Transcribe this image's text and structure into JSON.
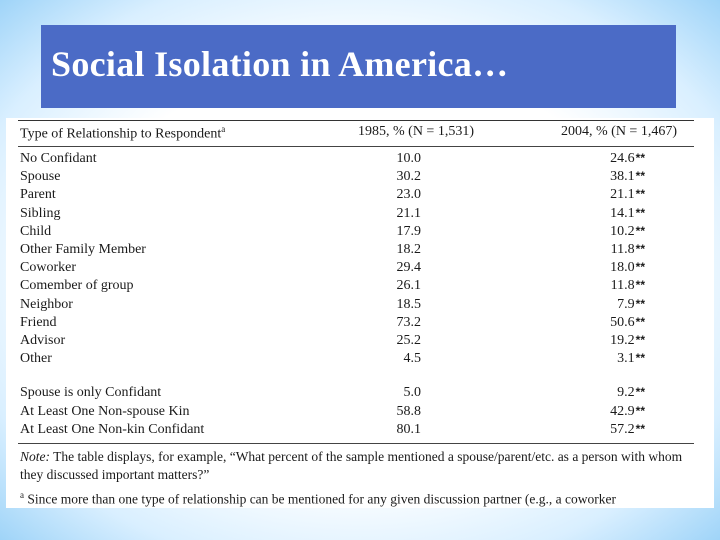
{
  "slide": {
    "title": "Social Isolation in America…"
  },
  "table": {
    "headers": {
      "type": "Type of Relationship to Respondent",
      "type_sup": "a",
      "col1985": "1985, % (N = 1,531)",
      "col2004": "2004, % (N = 1,467)"
    },
    "significance_marker": "**",
    "rows": [
      {
        "label": "No Confidant",
        "v1985": "10.0",
        "v2004": "24.6"
      },
      {
        "label": "Spouse",
        "v1985": "30.2",
        "v2004": "38.1"
      },
      {
        "label": "Parent",
        "v1985": "23.0",
        "v2004": "21.1"
      },
      {
        "label": "Sibling",
        "v1985": "21.1",
        "v2004": "14.1"
      },
      {
        "label": "Child",
        "v1985": "17.9",
        "v2004": "10.2"
      },
      {
        "label": "Other Family Member",
        "v1985": "18.2",
        "v2004": "11.8"
      },
      {
        "label": "Coworker",
        "v1985": "29.4",
        "v2004": "18.0"
      },
      {
        "label": "Comember of group",
        "v1985": "26.1",
        "v2004": "11.8"
      },
      {
        "label": "Neighbor",
        "v1985": "18.5",
        "v2004": "7.9"
      },
      {
        "label": "Friend",
        "v1985": "73.2",
        "v2004": "50.6"
      },
      {
        "label": "Advisor",
        "v1985": "25.2",
        "v2004": "19.2"
      },
      {
        "label": "Other",
        "v1985": "4.5",
        "v2004": "3.1"
      }
    ],
    "summary_rows": [
      {
        "label": "Spouse is only Confidant",
        "v1985": "5.0",
        "v2004": "9.2"
      },
      {
        "label": "At Least One Non-spouse Kin",
        "v1985": "58.8",
        "v2004": "42.9"
      },
      {
        "label": "At Least One Non-kin Confidant",
        "v1985": "80.1",
        "v2004": "57.2"
      }
    ],
    "note_label": "Note:",
    "note_text": " The table displays, for example, “What percent of the sample mentioned a spouse/parent/etc. as a person with whom they discussed important matters?”",
    "footnote_sup": "a",
    "footnote_text": " Since more than one type of relationship can be mentioned for any given discussion partner (e.g., a coworker"
  }
}
